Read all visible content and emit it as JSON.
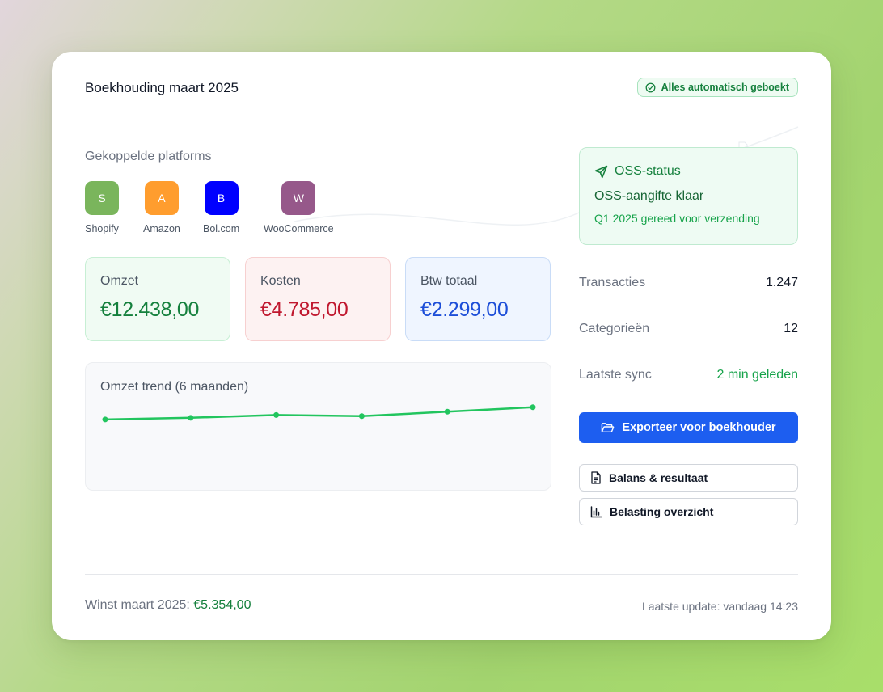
{
  "header": {
    "title": "Boekhouding maart 2025",
    "status_badge": "Alles automatisch geboekt"
  },
  "platforms": {
    "label": "Gekoppelde platforms",
    "items": [
      {
        "letter": "S",
        "name": "Shopify",
        "color": "#7ab55c"
      },
      {
        "letter": "A",
        "name": "Amazon",
        "color": "#ff9d2e"
      },
      {
        "letter": "B",
        "name": "Bol.com",
        "color": "#0000ff"
      },
      {
        "letter": "W",
        "name": "WooCommerce",
        "color": "#96588a"
      }
    ]
  },
  "stats": {
    "omzet": {
      "label": "Omzet",
      "value": "€12.438,00"
    },
    "kosten": {
      "label": "Kosten",
      "value": "€4.785,00"
    },
    "btw": {
      "label": "Btw totaal",
      "value": "€2.299,00"
    }
  },
  "trend": {
    "title": "Omzet trend (6 maanden)",
    "values": [
      10.2,
      10.5,
      11.0,
      10.8,
      11.6,
      12.4
    ],
    "ylim": [
      0,
      16
    ],
    "line_color": "#22c55e"
  },
  "oss": {
    "heading": "OSS-status",
    "status": "OSS-aangifte klaar",
    "detail": "Q1 2025 gereed voor verzending"
  },
  "summary": {
    "transacties": {
      "label": "Transacties",
      "value": "1.247"
    },
    "categorieen": {
      "label": "Categorieën",
      "value": "12"
    },
    "sync": {
      "label": "Laatste sync",
      "value": "2 min geleden"
    }
  },
  "actions": {
    "export": "Exporteer voor boekhouder",
    "balans": "Balans & resultaat",
    "belasting": "Belasting overzicht"
  },
  "footer": {
    "profit_label": "Winst maart 2025:",
    "profit_value": "€5.354,00",
    "last_update": "Laatste update: vandaag 14:23"
  },
  "colors": {
    "accent": "#1d5ef0",
    "positive": "#15803d",
    "negative": "#c0182f"
  }
}
